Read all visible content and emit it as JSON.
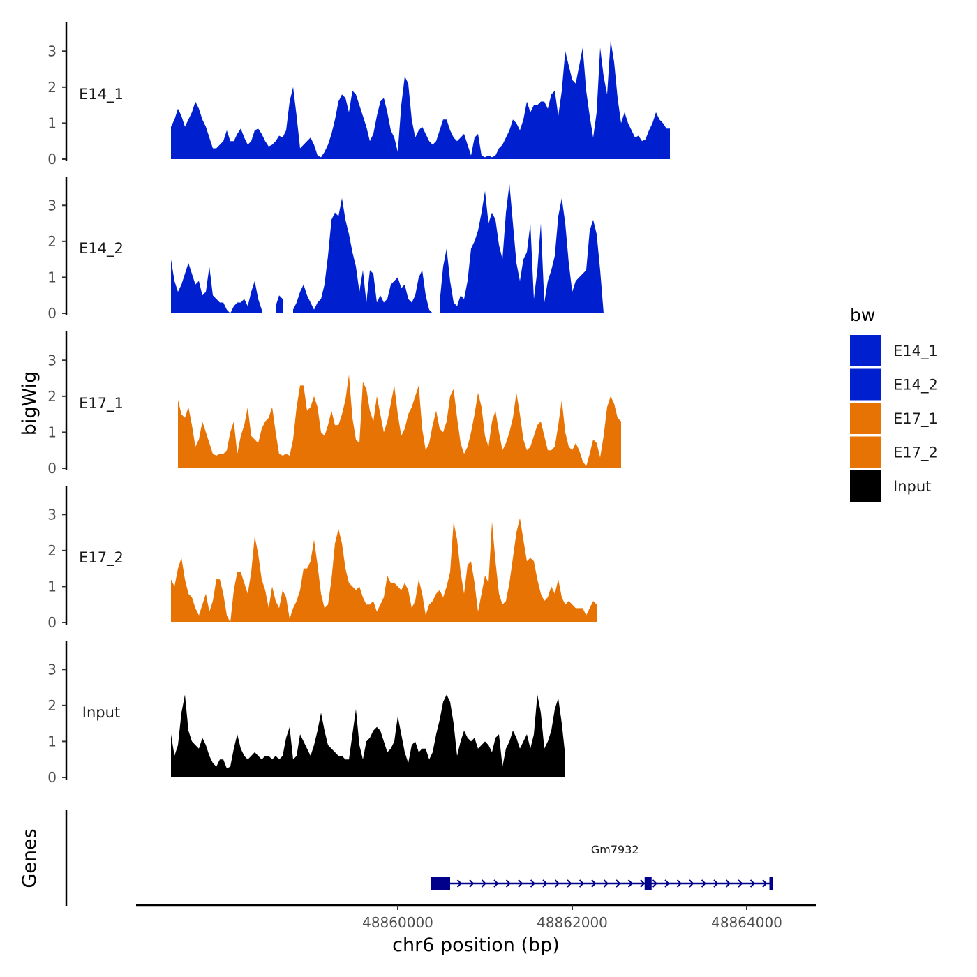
{
  "chart_data": {
    "type": "area",
    "subtype": "genome-track",
    "xlabel": "chr6 position (bp)",
    "ylabel": "bigWig",
    "genes_axis_label": "Genes",
    "xlim": [
      48857000,
      48864800
    ],
    "x_ticks": [
      48860000,
      48862000,
      48864000
    ],
    "x_tick_labels": [
      "48860000",
      "48862000",
      "48864000"
    ],
    "ylim": [
      0,
      3.8
    ],
    "y_ticks": [
      0,
      1,
      2,
      3
    ],
    "y_tick_labels": [
      "0",
      "1",
      "2",
      "3"
    ],
    "legend": {
      "title": "bw",
      "position": "right",
      "entries": [
        {
          "label": "E14_1",
          "color": "#0020d0"
        },
        {
          "label": "E14_2",
          "color": "#0020d0"
        },
        {
          "label": "E17_1",
          "color": "#e87305"
        },
        {
          "label": "E17_2",
          "color": "#e87305"
        },
        {
          "label": "Input",
          "color": "#000000"
        }
      ]
    },
    "x_step": 40,
    "series": [
      {
        "name": "E14_1",
        "color": "#0020d0",
        "x_start": 48857400,
        "values": [
          0.9,
          1.1,
          1.4,
          1.2,
          0.9,
          1.1,
          1.3,
          1.6,
          1.4,
          1.1,
          0.9,
          0.6,
          0.3,
          0.3,
          0.4,
          0.5,
          0.8,
          0.5,
          0.5,
          0.7,
          0.85,
          0.6,
          0.4,
          0.5,
          0.8,
          0.85,
          0.7,
          0.5,
          0.35,
          0.4,
          0.5,
          0.65,
          0.6,
          0.8,
          1.6,
          2.0,
          1.2,
          0.3,
          0.4,
          0.5,
          0.6,
          0.4,
          0.1,
          0.05,
          0.2,
          0.4,
          0.7,
          1.1,
          1.6,
          1.8,
          1.7,
          1.3,
          1.9,
          1.8,
          1.5,
          1.2,
          0.9,
          0.5,
          0.7,
          1.2,
          1.6,
          1.7,
          1.3,
          0.8,
          0.6,
          0.2,
          1.5,
          2.3,
          2.1,
          1.1,
          0.6,
          0.8,
          0.9,
          0.7,
          0.5,
          0.4,
          0.5,
          0.8,
          1.1,
          1.1,
          0.8,
          0.6,
          0.5,
          0.6,
          0.7,
          0.4,
          0.1,
          0.6,
          0.7,
          0.1,
          0.05,
          0.1,
          0.05,
          0.1,
          0.3,
          0.4,
          0.6,
          0.8,
          1.1,
          1.0,
          0.8,
          1.1,
          1.6,
          1.3,
          1.5,
          1.5,
          1.6,
          1.6,
          1.4,
          1.8,
          1.9,
          1.2,
          1.9,
          3.0,
          2.6,
          2.2,
          2.1,
          2.6,
          3.1,
          1.9,
          1.2,
          0.6,
          1.3,
          3.1,
          2.3,
          1.8,
          3.3,
          2.7,
          1.7,
          1.0,
          1.3,
          1.0,
          0.8,
          0.6,
          0.65,
          0.5,
          0.55,
          0.8,
          1.0,
          1.3,
          1.1,
          1.0,
          0.85,
          0.85
        ]
      },
      {
        "name": "E14_2",
        "color": "#0020d0",
        "x_start": 48857400,
        "values": [
          1.5,
          0.9,
          0.6,
          0.8,
          1.1,
          1.4,
          1.1,
          0.8,
          0.9,
          0.5,
          0.6,
          1.3,
          0.5,
          0.4,
          0.3,
          0.3,
          0.1,
          0.0,
          0.2,
          0.3,
          0.3,
          0.4,
          0.2,
          0.6,
          0.9,
          0.4,
          0.1,
          null,
          null,
          null,
          0.2,
          0.5,
          0.4,
          null,
          null,
          0.1,
          0.3,
          0.6,
          0.8,
          0.5,
          0.3,
          0.1,
          0.3,
          0.4,
          0.8,
          1.6,
          2.6,
          2.8,
          2.7,
          3.2,
          2.6,
          2.2,
          1.7,
          1.3,
          0.6,
          1.2,
          0.3,
          1.2,
          1.1,
          0.3,
          0.5,
          0.3,
          0.4,
          0.8,
          0.9,
          1.0,
          0.7,
          0.8,
          0.4,
          0.3,
          0.5,
          1.0,
          1.2,
          0.5,
          0.1,
          0.0,
          null,
          0.3,
          1.3,
          1.8,
          0.9,
          0.3,
          0.2,
          0.5,
          0.4,
          0.9,
          1.8,
          2.0,
          2.3,
          2.8,
          3.4,
          2.5,
          2.8,
          2.6,
          1.9,
          1.5,
          2.8,
          3.6,
          2.5,
          1.4,
          0.9,
          1.5,
          1.7,
          2.5,
          0.4,
          1.2,
          2.5,
          0.3,
          0.9,
          1.2,
          1.6,
          2.7,
          3.2,
          2.5,
          1.4,
          0.6,
          0.9,
          1.0,
          1.1,
          1.2,
          2.3,
          2.6,
          2.2,
          1.2,
          0.0
        ]
      },
      {
        "name": "E17_1",
        "color": "#e87305",
        "x_start": 48857480,
        "values": [
          1.9,
          1.5,
          1.4,
          1.7,
          1.2,
          0.6,
          0.8,
          1.3,
          1.0,
          0.7,
          0.4,
          0.35,
          0.4,
          0.4,
          0.5,
          1.0,
          1.3,
          0.4,
          0.9,
          1.2,
          1.7,
          0.9,
          0.8,
          0.7,
          1.1,
          1.3,
          1.4,
          1.7,
          1.0,
          0.4,
          0.35,
          0.4,
          0.35,
          0.8,
          1.7,
          2.3,
          2.3,
          1.6,
          1.7,
          2.0,
          1.7,
          1.0,
          0.9,
          1.2,
          1.6,
          1.2,
          1.2,
          1.5,
          1.9,
          2.6,
          1.4,
          0.8,
          0.7,
          2.4,
          2.2,
          1.6,
          1.3,
          2.0,
          1.5,
          1.0,
          1.3,
          1.8,
          2.3,
          1.5,
          0.9,
          1.1,
          1.5,
          1.7,
          2.0,
          2.3,
          1.1,
          0.5,
          0.7,
          1.2,
          1.6,
          1.1,
          1.0,
          1.3,
          2.0,
          2.2,
          1.4,
          0.7,
          0.4,
          0.6,
          1.0,
          1.5,
          2.1,
          1.7,
          0.9,
          0.6,
          1.3,
          1.6,
          1.0,
          0.5,
          0.7,
          1.0,
          1.4,
          2.1,
          1.5,
          0.8,
          0.5,
          0.6,
          0.9,
          1.2,
          1.3,
          0.9,
          0.5,
          0.5,
          0.6,
          1.2,
          1.9,
          1.0,
          0.6,
          0.5,
          0.7,
          0.5,
          0.2,
          0.05,
          0.4,
          0.8,
          0.7,
          0.3,
          0.9,
          1.7,
          2.0,
          1.8,
          1.4,
          1.3
        ]
      },
      {
        "name": "E17_2",
        "color": "#e87305",
        "x_start": 48857400,
        "values": [
          1.2,
          1.0,
          1.5,
          1.8,
          1.2,
          0.8,
          0.7,
          0.4,
          0.2,
          0.5,
          0.8,
          0.3,
          0.6,
          1.2,
          1.2,
          0.8,
          0.2,
          0.0,
          0.9,
          1.4,
          1.4,
          1.1,
          0.8,
          1.4,
          2.4,
          1.9,
          1.2,
          0.9,
          0.4,
          1.0,
          0.6,
          0.4,
          0.9,
          0.7,
          0.1,
          0.4,
          0.6,
          0.9,
          1.5,
          1.5,
          1.7,
          2.3,
          1.6,
          0.8,
          0.4,
          0.5,
          1.2,
          2.2,
          2.6,
          2.2,
          1.5,
          1.1,
          1.0,
          0.9,
          1.0,
          0.7,
          0.5,
          0.5,
          0.6,
          0.3,
          0.5,
          0.7,
          1.3,
          1.1,
          1.1,
          1.0,
          0.9,
          1.1,
          0.9,
          0.4,
          0.6,
          1.2,
          0.8,
          0.2,
          0.5,
          0.6,
          0.8,
          0.9,
          0.7,
          1.0,
          1.4,
          2.8,
          2.3,
          1.4,
          0.8,
          1.6,
          1.7,
          1.1,
          0.3,
          0.8,
          1.3,
          1.1,
          2.8,
          1.7,
          0.8,
          0.5,
          0.6,
          1.1,
          1.8,
          2.5,
          2.9,
          2.3,
          1.7,
          1.8,
          1.7,
          1.2,
          0.8,
          0.6,
          0.7,
          1.0,
          0.8,
          1.2,
          0.7,
          0.5,
          0.6,
          0.5,
          0.4,
          0.4,
          0.4,
          0.2,
          0.4,
          0.6,
          0.5
        ]
      },
      {
        "name": "Input",
        "color": "#000000",
        "x_start": 48857400,
        "values": [
          1.2,
          0.6,
          0.9,
          1.8,
          2.3,
          1.3,
          1.0,
          0.9,
          0.8,
          1.1,
          0.9,
          0.6,
          0.4,
          0.3,
          0.5,
          0.5,
          0.25,
          0.3,
          0.8,
          1.2,
          0.8,
          0.6,
          0.5,
          0.6,
          0.7,
          0.6,
          0.5,
          0.6,
          0.6,
          0.5,
          0.6,
          0.5,
          0.6,
          1.1,
          1.4,
          0.5,
          0.6,
          1.2,
          1.0,
          0.8,
          0.6,
          0.9,
          1.3,
          1.8,
          1.3,
          0.9,
          0.8,
          0.7,
          0.6,
          0.6,
          0.5,
          0.5,
          1.2,
          1.9,
          0.9,
          0.5,
          1.0,
          1.1,
          1.3,
          1.4,
          1.3,
          1.0,
          0.7,
          0.8,
          1.0,
          1.7,
          1.2,
          0.7,
          0.4,
          0.9,
          1.0,
          0.7,
          0.8,
          0.8,
          0.5,
          0.7,
          1.2,
          1.6,
          2.1,
          2.3,
          2.1,
          1.5,
          0.6,
          1.0,
          1.3,
          1.1,
          1.0,
          1.1,
          0.8,
          0.9,
          1.0,
          0.9,
          0.7,
          1.1,
          1.2,
          0.3,
          0.8,
          1.0,
          1.3,
          1.1,
          0.8,
          1.0,
          1.2,
          0.8,
          1.2,
          2.3,
          1.8,
          0.8,
          1.0,
          1.3,
          1.9,
          2.2,
          1.5,
          0.6
        ]
      }
    ],
    "gene": {
      "name": "Gm7932",
      "color": "#00008b",
      "start": 48860380,
      "end": 48864300,
      "strand": "+",
      "exons": [
        [
          48860380,
          48860600
        ],
        [
          48862830,
          48862910
        ],
        [
          48864260,
          48864300
        ]
      ]
    }
  }
}
